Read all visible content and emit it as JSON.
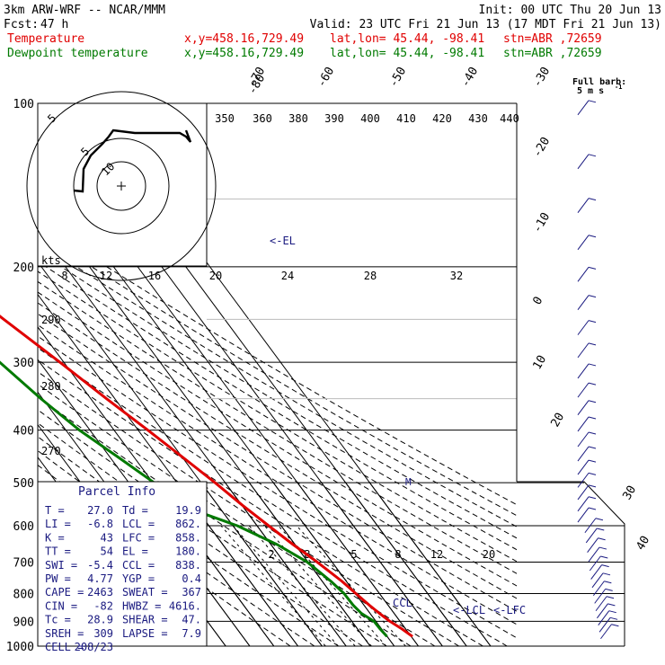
{
  "header": {
    "model": "3km ARW-WRF -- NCAR/MMM",
    "init": "Init: 00 UTC Thu 20 Jun 13",
    "fcst_label": "Fcst:",
    "fcst_hours": "47 h",
    "valid": "Valid: 23 UTC Fri 21 Jun 13 (17 MDT Fri 21 Jun 13)",
    "temp_label": "Temperature",
    "dew_label": "Dewpoint temperature",
    "point_xy": "x,y=458.16,729.49",
    "point_latlon": "lat,lon= 45.44, -98.41",
    "station": "stn=ABR ,72659",
    "barb_key_1": "Full barb:",
    "barb_key_2": "5 m s",
    "barb_key_exp": "-1"
  },
  "colors": {
    "temperature": "#e00000",
    "dewpoint": "#007a00",
    "index_text": "#1a1a80",
    "barbs": "#1a1a80"
  },
  "chart_data": {
    "type": "line",
    "subtype": "skew-T log-p",
    "y_axis": {
      "label": "Pressure (hPa)",
      "scale": "log",
      "range": [
        1000,
        100
      ],
      "ticks": [
        100,
        200,
        300,
        400,
        500,
        600,
        700,
        800,
        900,
        1000
      ]
    },
    "isotherm_labels": [
      "40",
      "30",
      "20",
      "10",
      "0",
      "-10",
      "-20",
      "-30",
      "-40",
      "-50",
      "-60",
      "-70",
      "-80"
    ],
    "theta_labels": [
      "350",
      "360",
      "380",
      "390",
      "400",
      "410",
      "420",
      "430",
      "440"
    ],
    "theta_side_labels": [
      "290",
      "280",
      "270"
    ],
    "mixing_ratio_labels": [
      "2",
      "3",
      "5",
      "8",
      "12",
      "20"
    ],
    "hodograph": {
      "speed_unit": "kts",
      "rings": [
        "5",
        "10"
      ],
      "speed_scale": [
        "8",
        "12",
        "16",
        "20",
        "24",
        "28",
        "32"
      ]
    },
    "series": [
      {
        "name": "Temperature",
        "color": "#e00000",
        "points": [
          {
            "p": 960,
            "t": 30.5
          },
          {
            "p": 930,
            "t": 28.5
          },
          {
            "p": 900,
            "t": 25.8
          },
          {
            "p": 870,
            "t": 23.9
          },
          {
            "p": 840,
            "t": 22.2
          },
          {
            "p": 800,
            "t": 20.2
          },
          {
            "p": 760,
            "t": 18.2
          },
          {
            "p": 700,
            "t": 13.8
          },
          {
            "p": 650,
            "t": 9.2
          },
          {
            "p": 600,
            "t": 4.8
          },
          {
            "p": 550,
            "t": 0.2
          },
          {
            "p": 500,
            "t": -4.2
          },
          {
            "p": 450,
            "t": -9.7
          },
          {
            "p": 400,
            "t": -16.0
          },
          {
            "p": 350,
            "t": -23.5
          },
          {
            "p": 300,
            "t": -31.6
          },
          {
            "p": 250,
            "t": -41.7
          },
          {
            "p": 220,
            "t": -48.7
          },
          {
            "p": 200,
            "t": -53.9
          },
          {
            "p": 180,
            "t": -57.7
          },
          {
            "p": 160,
            "t": -59.4
          },
          {
            "p": 145,
            "t": -59.8
          },
          {
            "p": 130,
            "t": -58.1
          },
          {
            "p": 115,
            "t": -58.3
          },
          {
            "p": 100,
            "t": -60.4
          }
        ]
      },
      {
        "name": "Dewpoint temperature",
        "color": "#007a00",
        "points": [
          {
            "p": 960,
            "t": 19.9
          },
          {
            "p": 930,
            "t": 19.4
          },
          {
            "p": 900,
            "t": 19.2
          },
          {
            "p": 870,
            "t": 16.4
          },
          {
            "p": 840,
            "t": 15.5
          },
          {
            "p": 800,
            "t": 15.3
          },
          {
            "p": 760,
            "t": 13.6
          },
          {
            "p": 700,
            "t": 9.7
          },
          {
            "p": 650,
            "t": 2.6
          },
          {
            "p": 600,
            "t": -8.2
          },
          {
            "p": 550,
            "t": -25.6
          },
          {
            "p": 500,
            "t": -29.5
          },
          {
            "p": 450,
            "t": -36.4
          },
          {
            "p": 400,
            "t": -44.4
          },
          {
            "p": 350,
            "t": -50.7
          },
          {
            "p": 300,
            "t": -56.6
          },
          {
            "p": 250,
            "t": -64.1
          },
          {
            "p": 220,
            "t": -69.0
          },
          {
            "p": 200,
            "t": -72.9
          },
          {
            "p": 180,
            "t": -76.6
          },
          {
            "p": 160,
            "t": -80.5
          },
          {
            "p": 145,
            "t": -81.9
          },
          {
            "p": 130,
            "t": -83.2
          },
          {
            "p": 115,
            "t": -83.4
          },
          {
            "p": 100,
            "t": -82.0
          }
        ]
      }
    ],
    "annotations": [
      {
        "text": "<-EL",
        "p": 180
      },
      {
        "text": "<-LCL",
        "p": 862
      },
      {
        "text": "<-LFC",
        "p": 858
      },
      {
        "text": "CCL",
        "p": 838
      }
    ]
  },
  "parcel_info": {
    "title": "Parcel Info",
    "rows": [
      [
        "T  =",
        "27.0",
        "Td =",
        "19.9"
      ],
      [
        "LI =",
        "-6.8",
        "LCL =",
        "862."
      ],
      [
        "K  =",
        "43",
        "LFC =",
        "858."
      ],
      [
        "TT =",
        "54",
        "EL  =",
        "180."
      ],
      [
        "SWI =",
        "-5.4",
        "CCL =",
        "838."
      ],
      [
        "PW =",
        "4.77",
        "YGP =",
        "0.4"
      ],
      [
        "CAPE =",
        "2463",
        "SWEAT =",
        "367"
      ],
      [
        "CIN =",
        "-82",
        "HWBZ =",
        "4616."
      ],
      [
        "Tc =",
        "28.9",
        "SHEAR =",
        "47."
      ],
      [
        "SREH =",
        "309",
        "LAPSE =",
        "7.9"
      ],
      [
        "CELL =",
        "208/23",
        "",
        ""
      ]
    ]
  }
}
